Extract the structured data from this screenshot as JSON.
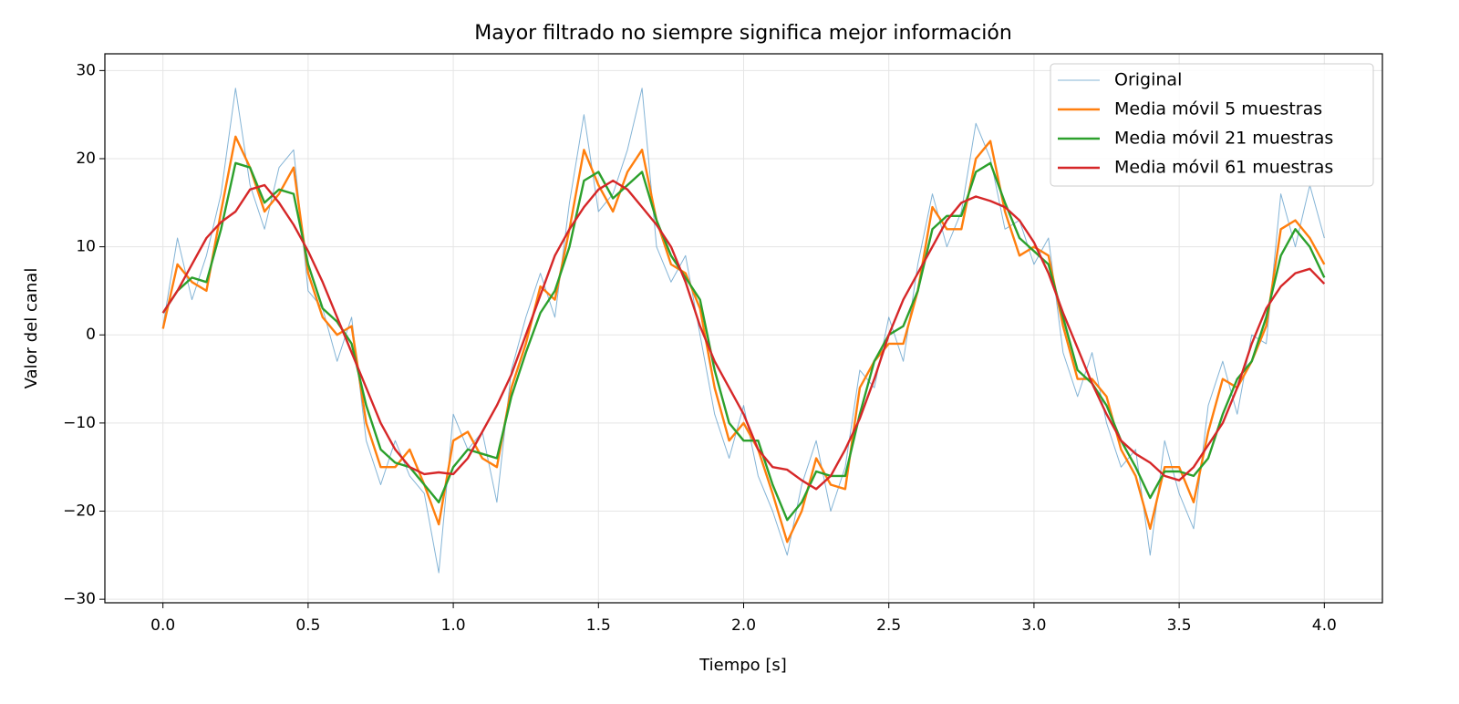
{
  "chart_data": {
    "type": "line",
    "title": "Mayor filtrado no siempre significa mejor información",
    "xlabel": "Tiempo [s]",
    "ylabel": "Valor del canal",
    "x": [
      0,
      0.05,
      0.1,
      0.15,
      0.2,
      0.25,
      0.3,
      0.35,
      0.4,
      0.45,
      0.5,
      0.55,
      0.6,
      0.65,
      0.7,
      0.75,
      0.8,
      0.85,
      0.9,
      0.95,
      1.0,
      1.05,
      1.1,
      1.15,
      1.2,
      1.25,
      1.3,
      1.35,
      1.4,
      1.45,
      1.5,
      1.55,
      1.6,
      1.65,
      1.7,
      1.75,
      1.8,
      1.85,
      1.9,
      1.95,
      2.0,
      2.05,
      2.1,
      2.15,
      2.2,
      2.25,
      2.3,
      2.35,
      2.4,
      2.45,
      2.5,
      2.55,
      2.6,
      2.65,
      2.7,
      2.75,
      2.8,
      2.85,
      2.9,
      2.95,
      3.0,
      3.05,
      3.1,
      3.15,
      3.2,
      3.25,
      3.3,
      3.35,
      3.4,
      3.45,
      3.5,
      3.55,
      3.6,
      3.65,
      3.7,
      3.75,
      3.8,
      3.85,
      3.9,
      3.95,
      4.0
    ],
    "series": [
      {
        "name": "Original",
        "color": "#1f77b4",
        "values": [
          1,
          11,
          4,
          9,
          16,
          28,
          17,
          12,
          19,
          21,
          5,
          3,
          -3,
          2,
          -12,
          -17,
          -12,
          -16,
          -18,
          -27,
          -9,
          -13,
          -11,
          -19,
          -4,
          2,
          7,
          2,
          15,
          25,
          14,
          16,
          21,
          28,
          10,
          6,
          9,
          0,
          -9,
          -14,
          -8,
          -16,
          -20,
          -25,
          -17,
          -12,
          -20,
          -15,
          -4,
          -6,
          2,
          -3,
          8,
          16,
          10,
          14,
          24,
          20,
          12,
          13,
          8,
          11,
          -2,
          -7,
          -2,
          -10,
          -15,
          -13,
          -25,
          -12,
          -18,
          -22,
          -8,
          -3,
          -9,
          0,
          -1,
          16,
          10,
          17,
          11
        ]
      },
      {
        "name": "Media móvil 5 muestras",
        "color": "#ff7f0e",
        "values": [
          0.7,
          8,
          6,
          5,
          14,
          22.5,
          19,
          14,
          16,
          19,
          7,
          2,
          0,
          1,
          -10,
          -15,
          -15,
          -13,
          -17,
          -21.5,
          -12,
          -11,
          -14,
          -15,
          -6,
          -1,
          5.5,
          4,
          12,
          21,
          17,
          14,
          18.5,
          21,
          13,
          8,
          7,
          3,
          -6,
          -12,
          -10,
          -13,
          -18,
          -23.5,
          -20,
          -14,
          -17,
          -17.5,
          -6,
          -3,
          -1,
          -1,
          5,
          14.5,
          12,
          12,
          20,
          22,
          14,
          9,
          10,
          9,
          1,
          -5,
          -5,
          -7,
          -13,
          -16,
          -22,
          -15,
          -15,
          -19,
          -11,
          -5,
          -6,
          -3,
          1,
          12,
          13,
          11,
          8
        ]
      },
      {
        "name": "Media móvil 21 muestras",
        "color": "#2ca02c",
        "values": [
          2.5,
          5,
          6.5,
          6,
          12,
          19.5,
          19,
          15,
          16.5,
          16,
          8,
          3,
          1.5,
          -1,
          -8,
          -13,
          -14.5,
          -15,
          -17,
          -19,
          -15,
          -13,
          -13.5,
          -14,
          -7,
          -2,
          2.5,
          5,
          10,
          17.5,
          18.5,
          15.5,
          17,
          18.5,
          13,
          9,
          6.5,
          4,
          -4,
          -10,
          -12,
          -12,
          -17,
          -21,
          -19,
          -15.5,
          -16,
          -16,
          -9,
          -3,
          0,
          1,
          5,
          12,
          13.5,
          13.5,
          18.5,
          19.5,
          15,
          11,
          9.5,
          8,
          2,
          -4,
          -5.5,
          -8,
          -12,
          -15,
          -18.5,
          -15.5,
          -15.5,
          -16,
          -14,
          -9,
          -5,
          -3,
          2,
          9,
          12,
          10,
          6.5
        ]
      },
      {
        "name": "Media móvil 61 muestras",
        "color": "#d62728",
        "values": [
          2.5,
          5,
          8,
          11,
          12.8,
          14,
          16.5,
          17,
          15,
          12.5,
          9.5,
          6,
          2,
          -2,
          -6,
          -10,
          -13,
          -15,
          -15.8,
          -15.6,
          -15.8,
          -14,
          -11,
          -8,
          -4.5,
          0,
          4.5,
          9,
          12,
          14.5,
          16.5,
          17.5,
          16.5,
          14.5,
          12.5,
          10,
          6,
          1,
          -3,
          -6,
          -9,
          -13,
          -15,
          -15.3,
          -16.5,
          -17.5,
          -16,
          -13,
          -9.5,
          -5,
          0,
          4,
          7,
          10,
          13,
          15,
          15.7,
          15.2,
          14.5,
          13,
          10.5,
          7,
          2.5,
          -1.5,
          -5.5,
          -9,
          -12,
          -13.5,
          -14.5,
          -16,
          -16.5,
          -15,
          -12.5,
          -10,
          -6,
          -1,
          3,
          5.5,
          7,
          7.5,
          5.8
        ]
      }
    ],
    "xlim": [
      -0.2,
      4.2
    ],
    "ylim": [
      -30.4,
      31.9
    ],
    "xticks": [
      {
        "value": 0,
        "label": "0.0"
      },
      0.5,
      {
        "value": 1,
        "label": "1.0"
      },
      1.5,
      {
        "value": 2,
        "label": "2.0"
      },
      2.5,
      {
        "value": 3,
        "label": "3.0"
      },
      3.5,
      {
        "value": 4,
        "label": "4.0"
      }
    ],
    "yticks": [
      {
        "value": -30,
        "label": "−30"
      },
      {
        "value": -20,
        "label": "−20"
      },
      {
        "value": -10,
        "label": "−10"
      },
      0,
      10,
      20,
      30
    ],
    "grid": true,
    "legend": "upper right"
  }
}
